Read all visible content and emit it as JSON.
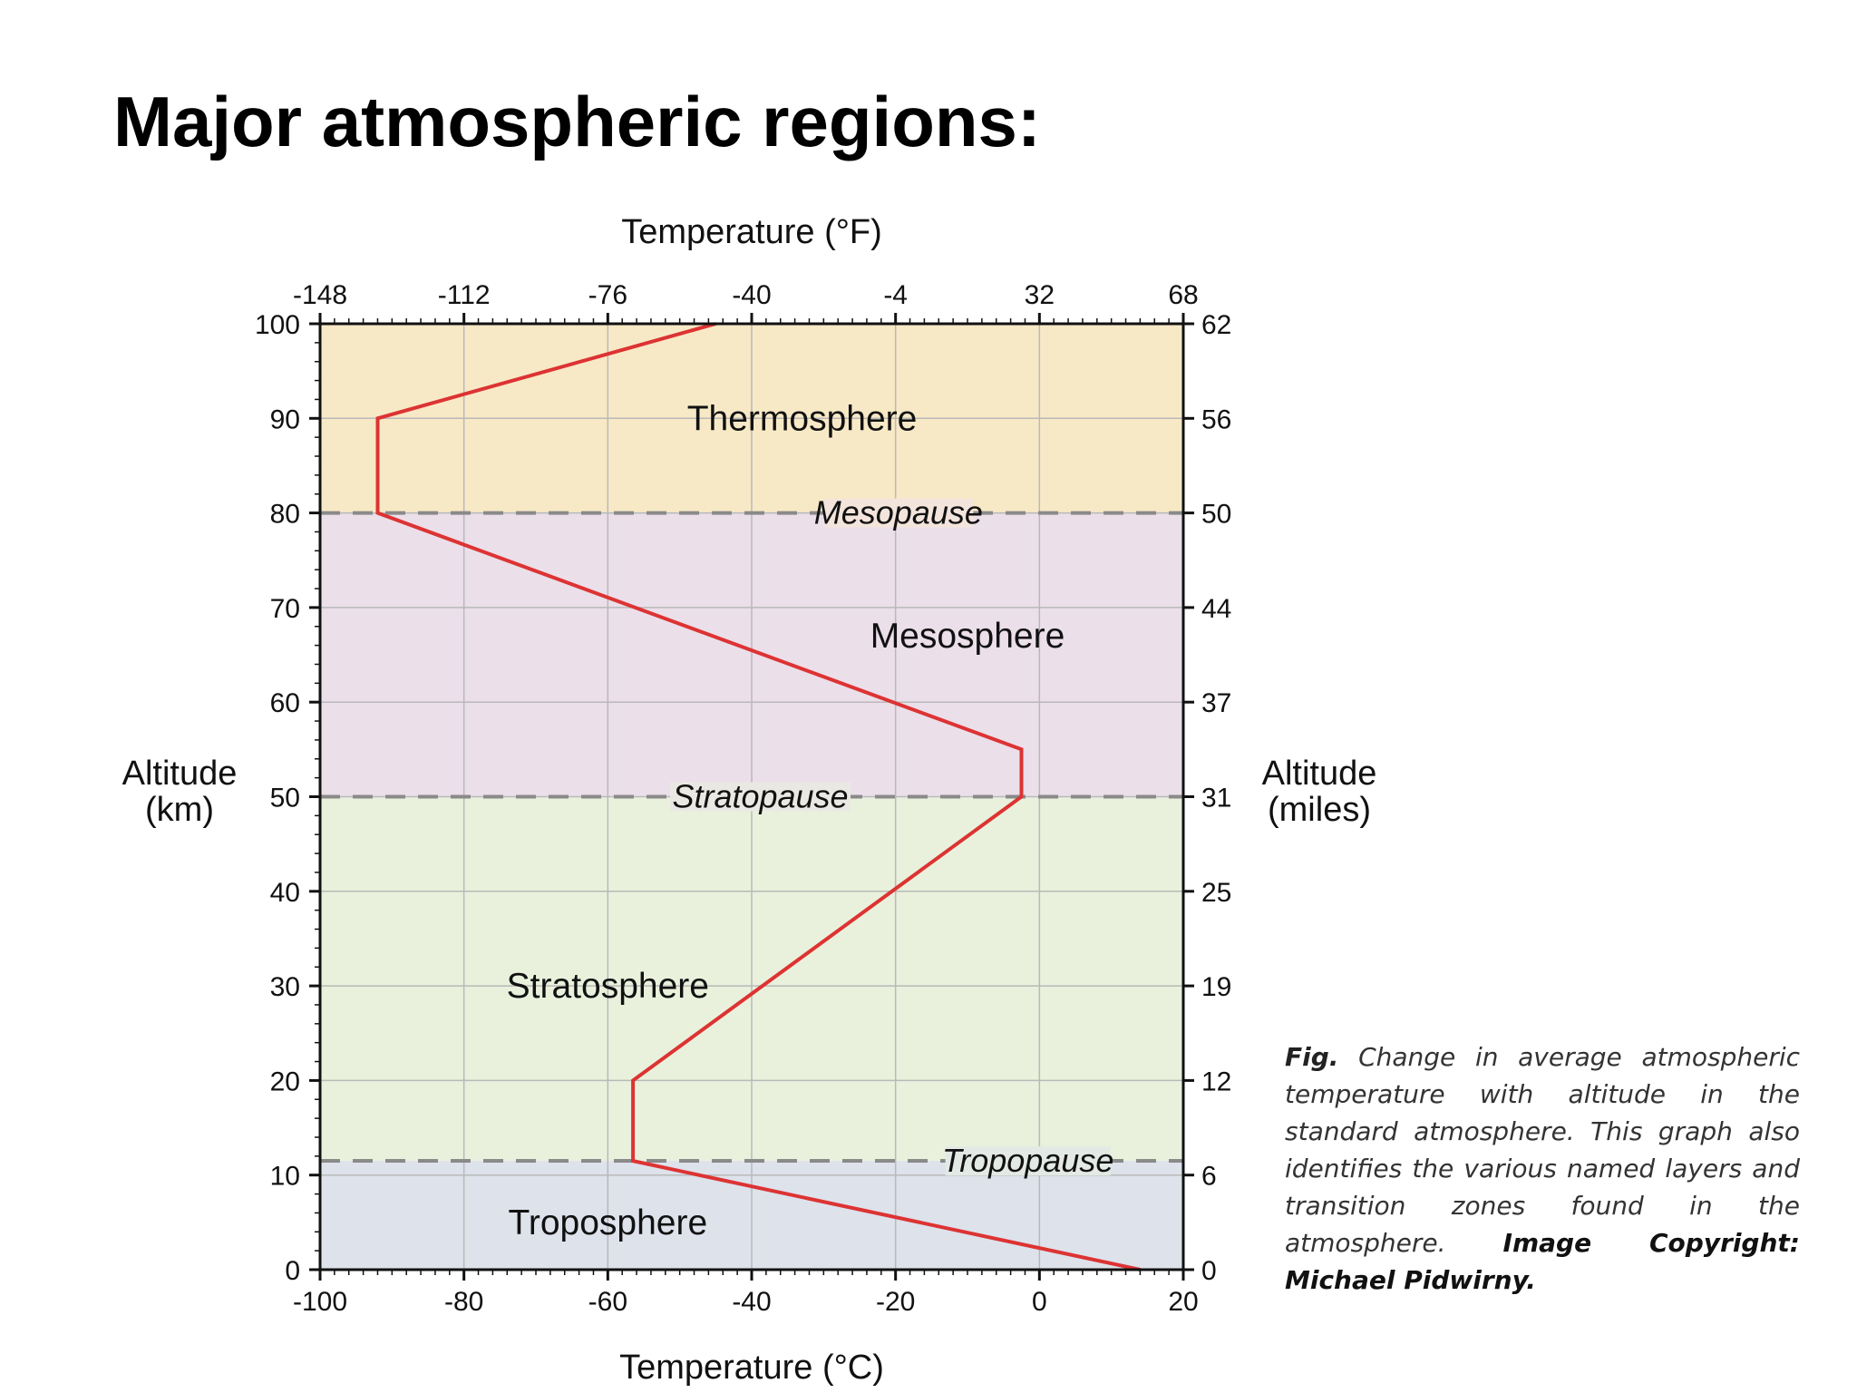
{
  "slide": {
    "title": "Major atmospheric regions:"
  },
  "caption": {
    "lead": "Fig.",
    "text": " Change in average atmospheric temperature with altitude in the standard atmosphere. This graph also identifies the various named layers and transition zones found in the atmosphere. ",
    "credit": "Image Copyright: Michael Pidwirny."
  },
  "chart_data": {
    "type": "line",
    "title": "",
    "xlabel": "Temperature (°C)",
    "x2label": "Temperature (°F)",
    "ylabel": "Altitude (km)",
    "y2label": "Altitude (miles)",
    "xlim": [
      -100,
      20
    ],
    "ylim": [
      0,
      100
    ],
    "grid": true,
    "x_ticks": [
      "-100",
      "-80",
      "-60",
      "-40",
      "-20",
      "0",
      "20"
    ],
    "x2_ticks": [
      "-148",
      "-112",
      "-76",
      "-40",
      "-4",
      "32",
      "68"
    ],
    "y_ticks": [
      "0",
      "10",
      "20",
      "30",
      "40",
      "50",
      "60",
      "70",
      "80",
      "90",
      "100"
    ],
    "y2_ticks": [
      "0",
      "6",
      "12",
      "19",
      "25",
      "31",
      "37",
      "44",
      "50",
      "56",
      "62"
    ],
    "series": [
      {
        "points": [
          [
            14,
            0
          ],
          [
            -56.5,
            11.5
          ],
          [
            -56.5,
            20
          ],
          [
            -2.5,
            50
          ],
          [
            -2.5,
            55
          ],
          [
            -92,
            80
          ],
          [
            -92,
            90
          ],
          [
            -45,
            100
          ]
        ],
        "color": "#dd3333"
      }
    ],
    "regions": [
      {
        "name": "Troposphere",
        "from": 0,
        "to": 11.5,
        "color": "#dde2eb"
      },
      {
        "name": "Stratosphere",
        "from": 11.5,
        "to": 50,
        "color": "#e9f1dc"
      },
      {
        "name": "Mesosphere",
        "from": 50,
        "to": 80,
        "color": "#ebdfea"
      },
      {
        "name": "Thermosphere",
        "from": 80,
        "to": 100,
        "color": "#f8e9c6"
      }
    ],
    "boundaries": [
      {
        "name": "Tropopause",
        "altitude": 11.5
      },
      {
        "name": "Stratopause",
        "altitude": 50
      },
      {
        "name": "Mesopause",
        "altitude": 80
      }
    ]
  }
}
